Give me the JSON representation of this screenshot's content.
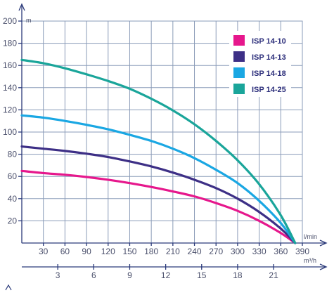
{
  "chart_data": {
    "type": "line",
    "title": "",
    "y_unit": "m",
    "x_unit_primary": "l/min",
    "x_unit_secondary": "m³/h",
    "xlim": [
      0,
      390
    ],
    "ylim": [
      0,
      200
    ],
    "x_ticks": [
      30,
      60,
      90,
      120,
      150,
      180,
      210,
      240,
      270,
      300,
      330,
      360,
      390
    ],
    "y_ticks": [
      20,
      40,
      60,
      80,
      100,
      120,
      140,
      160,
      180,
      200
    ],
    "x2_ticks": [
      3,
      6,
      9,
      12,
      15,
      18,
      21
    ],
    "x2_factor": 16.6667,
    "grid": true,
    "legend_position": "top-right",
    "series": [
      {
        "name": "ISP 14-10",
        "color": "#e6178c",
        "x": [
          0,
          30,
          60,
          90,
          120,
          150,
          180,
          210,
          240,
          270,
          300,
          330,
          360,
          380
        ],
        "y": [
          65,
          63,
          61.5,
          59.5,
          57,
          54,
          50.5,
          46.5,
          42,
          36,
          29,
          20,
          9,
          0
        ]
      },
      {
        "name": "ISP 14-13",
        "color": "#3d2f86",
        "x": [
          0,
          30,
          60,
          90,
          120,
          150,
          180,
          210,
          240,
          270,
          300,
          330,
          360,
          380
        ],
        "y": [
          87,
          85,
          83,
          80.5,
          77.5,
          73.5,
          69,
          63.5,
          57,
          49.5,
          40,
          28,
          13,
          0
        ]
      },
      {
        "name": "ISP 14-18",
        "color": "#1aa7e3",
        "x": [
          0,
          30,
          60,
          90,
          120,
          150,
          180,
          210,
          240,
          270,
          300,
          330,
          360,
          380
        ],
        "y": [
          115,
          113,
          110,
          106.5,
          102.5,
          97.5,
          92,
          85,
          76.5,
          66,
          54,
          38,
          18,
          0
        ]
      },
      {
        "name": "ISP 14-25",
        "color": "#1aa59a",
        "x": [
          0,
          30,
          60,
          90,
          120,
          150,
          180,
          210,
          240,
          270,
          300,
          330,
          360,
          380
        ],
        "y": [
          165,
          162,
          157.5,
          152,
          146,
          139,
          130,
          119.5,
          107,
          92,
          74.5,
          53,
          25,
          0
        ]
      }
    ]
  }
}
